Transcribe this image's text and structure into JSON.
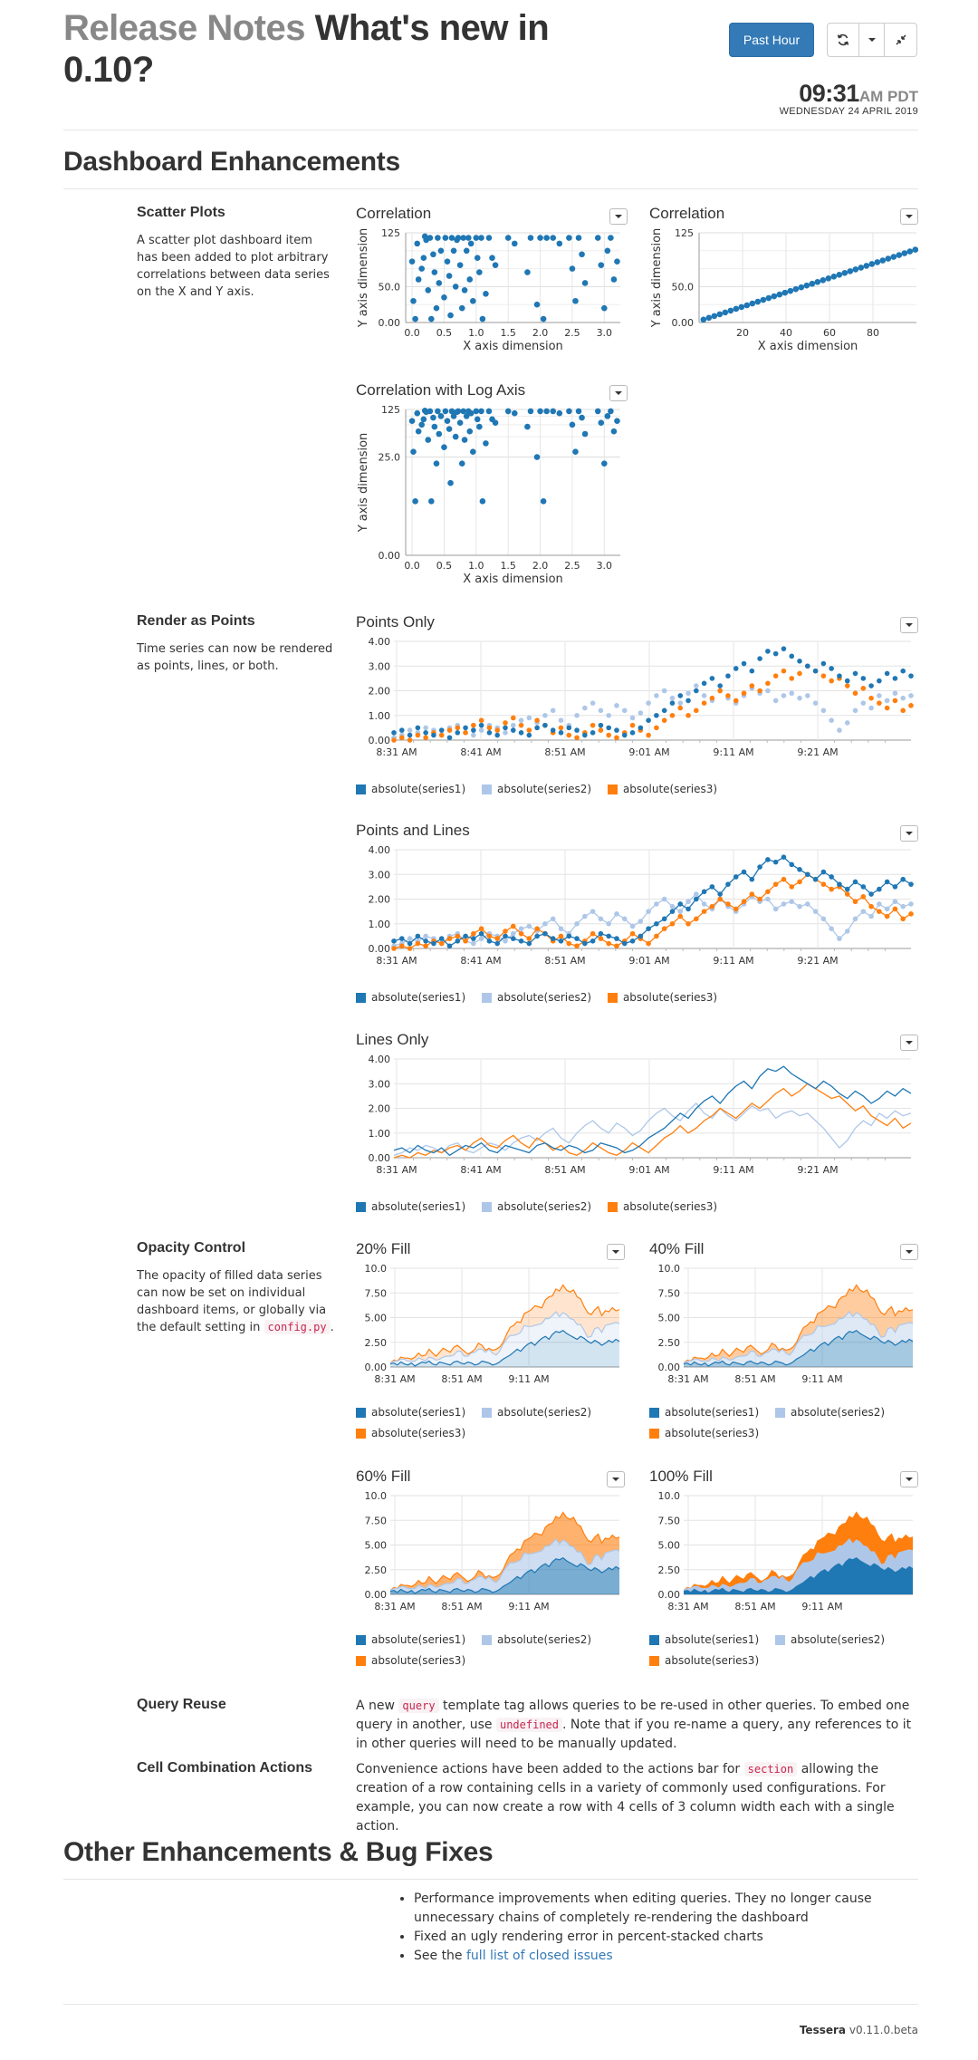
{
  "header": {
    "title_prefix": "Release Notes",
    "title_main": "What's new in 0.10?",
    "time_range_button": "Past Hour",
    "clock_time": "09:31",
    "clock_ampm": "AM PDT",
    "clock_date": "WEDNESDAY 24 APRIL 2019"
  },
  "sections": {
    "dashboard_enhancements": "Dashboard Enhancements",
    "other": "Other Enhancements & Bug Fixes"
  },
  "features": {
    "scatter": {
      "title": "Scatter Plots",
      "desc": "A scatter plot dashboard item has been added to plot arbitrary correlations between data series on the X and Y axis."
    },
    "points": {
      "title": "Render as Points",
      "desc": "Time series can now be rendered as points, lines, or both."
    },
    "opacity": {
      "title": "Opacity Control",
      "desc_1": "The opacity of filled data series can now be set on individual dashboard items, or globally via the default setting in",
      "desc_code": "config.py",
      "desc_2": "."
    },
    "query_reuse": {
      "title": "Query Reuse",
      "text_1": "A new",
      "code_1": "query",
      "text_2": "template tag allows queries to be re-used in other queries. To embed one query in another, use",
      "code_2": "undefined",
      "text_3": ". Note that if you re-name a query, any references to it in other queries will need to be manually updated."
    },
    "cell_combo": {
      "title": "Cell Combination Actions",
      "text_1": "Convenience actions have been added to the actions bar for",
      "code_1": "section",
      "text_2": "allowing the creation of a row containing cells in a variety of commonly used configurations. For example, you can now create a row with 4 cells of 3 column width each with a single action."
    }
  },
  "fixes": {
    "item_1": "Performance improvements when editing queries. They no longer cause unnecessary chains of completely re-rendering the dashboard",
    "item_2": "Fixed an ugly rendering error in percent-stacked charts",
    "item_3_prefix": "See the",
    "item_3_link": "full list of closed issues"
  },
  "footer": {
    "brand": "Tessera",
    "version": "v0.11.0.beta"
  },
  "colors": {
    "series1": "#1f77b4",
    "series2": "#aec7e8",
    "series3": "#ff7f0e",
    "primary": "#337ab7"
  },
  "legend": [
    "absolute(series1)",
    "absolute(series2)",
    "absolute(series3)"
  ],
  "chart_data": [
    {
      "id": "corr1",
      "type": "scatter",
      "title": "Correlation",
      "xlabel": "X axis dimension",
      "ylabel": "Y axis dimension",
      "xticks": [
        "0.0",
        "0.5",
        "1.0",
        "1.5",
        "2.0",
        "2.5",
        "3.0"
      ],
      "yticks": [
        "0.00",
        "50.0",
        "125"
      ],
      "xlim": [
        -0.1,
        3.25
      ],
      "ylim": [
        0,
        125
      ],
      "points": [
        [
          0.0,
          85
        ],
        [
          0.02,
          30
        ],
        [
          0.05,
          5
        ],
        [
          0.08,
          110
        ],
        [
          0.1,
          60
        ],
        [
          0.15,
          75
        ],
        [
          0.18,
          90
        ],
        [
          0.2,
          120
        ],
        [
          0.22,
          115
        ],
        [
          0.25,
          45
        ],
        [
          0.28,
          118
        ],
        [
          0.3,
          5
        ],
        [
          0.33,
          95
        ],
        [
          0.35,
          70
        ],
        [
          0.38,
          20
        ],
        [
          0.4,
          118
        ],
        [
          0.42,
          55
        ],
        [
          0.45,
          100
        ],
        [
          0.5,
          35
        ],
        [
          0.52,
          118
        ],
        [
          0.55,
          85
        ],
        [
          0.58,
          65
        ],
        [
          0.6,
          10
        ],
        [
          0.62,
          118
        ],
        [
          0.65,
          100
        ],
        [
          0.68,
          50
        ],
        [
          0.7,
          115
        ],
        [
          0.72,
          118
        ],
        [
          0.75,
          80
        ],
        [
          0.78,
          20
        ],
        [
          0.8,
          118
        ],
        [
          0.82,
          45
        ],
        [
          0.85,
          100
        ],
        [
          0.88,
          118
        ],
        [
          0.9,
          60
        ],
        [
          0.92,
          110
        ],
        [
          0.95,
          30
        ],
        [
          1.0,
          118
        ],
        [
          1.02,
          90
        ],
        [
          1.05,
          70
        ],
        [
          1.08,
          118
        ],
        [
          1.1,
          5
        ],
        [
          1.15,
          40
        ],
        [
          1.2,
          118
        ],
        [
          1.25,
          90
        ],
        [
          1.3,
          80
        ],
        [
          1.5,
          118
        ],
        [
          1.6,
          110
        ],
        [
          1.8,
          70
        ],
        [
          1.85,
          118
        ],
        [
          1.95,
          25
        ],
        [
          2.0,
          118
        ],
        [
          2.05,
          5
        ],
        [
          2.1,
          118
        ],
        [
          2.2,
          118
        ],
        [
          2.3,
          110
        ],
        [
          2.45,
          118
        ],
        [
          2.5,
          75
        ],
        [
          2.55,
          30
        ],
        [
          2.6,
          118
        ],
        [
          2.65,
          95
        ],
        [
          2.7,
          55
        ],
        [
          2.9,
          118
        ],
        [
          2.95,
          80
        ],
        [
          3.0,
          20
        ],
        [
          3.05,
          100
        ],
        [
          3.1,
          118
        ],
        [
          3.15,
          60
        ],
        [
          3.2,
          85
        ]
      ]
    },
    {
      "id": "corr2",
      "type": "scatter",
      "title": "Correlation",
      "xlabel": "X axis dimension",
      "ylabel": "Y axis dimension",
      "xticks": [
        "20",
        "40",
        "60",
        "80"
      ],
      "yticks": [
        "0.00",
        "50.0",
        "125"
      ],
      "xlim": [
        0,
        100
      ],
      "ylim": [
        0,
        125
      ],
      "points": "linear",
      "npoints": 40
    },
    {
      "id": "corrlog",
      "type": "scatter",
      "title": "Correlation with Log Axis",
      "xlabel": "X axis dimension",
      "ylabel": "Y axis dimension",
      "xticks": [
        "0.0",
        "0.5",
        "1.0",
        "1.5",
        "2.0",
        "2.5",
        "3.0"
      ],
      "yticks": [
        "0.00",
        "25.0",
        "125"
      ],
      "xlim": [
        -0.1,
        3.25
      ],
      "ylim": [
        0,
        125
      ],
      "yscale": "log",
      "points": "same_as_corr1"
    },
    {
      "id": "points_only",
      "type": "line",
      "title": "Points Only",
      "mode": "points",
      "xticks": [
        "8:31 AM",
        "8:41 AM",
        "8:51 AM",
        "9:01 AM",
        "9:11 AM",
        "9:21 AM"
      ],
      "yticks": [
        "0.00",
        "1.00",
        "2.00",
        "3.00",
        "4.00"
      ],
      "ylim": [
        0,
        4
      ],
      "series1": [
        0.3,
        0.4,
        0.2,
        0.5,
        0.3,
        0.2,
        0.4,
        0.1,
        0.3,
        0.5,
        0.4,
        0.6,
        0.3,
        0.2,
        0.5,
        0.4,
        0.3,
        0.2,
        0.5,
        0.6,
        0.4,
        0.3,
        0.5,
        0.4,
        0.2,
        0.3,
        0.6,
        0.5,
        0.4,
        0.2,
        0.3,
        0.5,
        0.8,
        1.0,
        1.2,
        1.5,
        1.8,
        1.6,
        2.0,
        2.3,
        2.5,
        2.2,
        2.6,
        2.9,
        3.1,
        2.8,
        3.3,
        3.6,
        3.5,
        3.7,
        3.4,
        3.2,
        3.0,
        2.8,
        3.1,
        2.9,
        2.6,
        2.4,
        2.7,
        2.5,
        2.2,
        2.4,
        2.7,
        2.5,
        2.8,
        2.6
      ],
      "series2": [
        0.1,
        0.2,
        0.4,
        0.3,
        0.5,
        0.4,
        0.2,
        0.5,
        0.6,
        0.3,
        0.2,
        0.4,
        0.6,
        0.5,
        0.3,
        0.6,
        0.8,
        0.9,
        0.7,
        1.0,
        1.2,
        0.8,
        0.6,
        1.0,
        1.3,
        1.5,
        1.2,
        1.0,
        1.4,
        1.2,
        0.9,
        1.1,
        1.5,
        1.8,
        2.0,
        1.7,
        1.5,
        1.9,
        2.2,
        1.8,
        1.6,
        2.0,
        1.7,
        1.5,
        1.8,
        2.1,
        1.9,
        2.0,
        1.6,
        1.8,
        1.9,
        1.7,
        1.8,
        1.5,
        1.2,
        0.8,
        0.4,
        0.7,
        1.2,
        1.5,
        1.3,
        1.8,
        1.6,
        1.9,
        1.7,
        1.8
      ],
      "series3": [
        0.0,
        0.1,
        0.0,
        0.2,
        0.1,
        0.3,
        0.2,
        0.4,
        0.5,
        0.3,
        0.6,
        0.8,
        0.5,
        0.4,
        0.7,
        0.9,
        0.6,
        0.4,
        0.8,
        0.6,
        0.3,
        0.5,
        0.2,
        0.1,
        0.3,
        0.6,
        0.4,
        0.2,
        0.1,
        0.3,
        0.6,
        0.4,
        0.2,
        0.5,
        0.8,
        1.0,
        1.3,
        1.0,
        1.2,
        1.5,
        1.7,
        2.0,
        1.8,
        1.6,
        1.9,
        2.2,
        2.0,
        2.3,
        2.6,
        2.8,
        2.5,
        2.7,
        3.0,
        2.8,
        2.6,
        2.4,
        2.5,
        2.2,
        1.9,
        2.1,
        1.7,
        1.5,
        1.3,
        1.6,
        1.2,
        1.4
      ]
    },
    {
      "id": "points_lines",
      "type": "line",
      "title": "Points and Lines",
      "mode": "both"
    },
    {
      "id": "lines_only",
      "type": "line",
      "title": "Lines Only",
      "mode": "lines"
    },
    {
      "id": "fill20",
      "type": "area",
      "title": "20% Fill",
      "opacity": 0.2,
      "xticks": [
        "8:31 AM",
        "8:51 AM",
        "9:11 AM"
      ],
      "yticks": [
        "0.00",
        "2.50",
        "5.00",
        "7.50",
        "10.0"
      ],
      "ylim": [
        0,
        10
      ]
    },
    {
      "id": "fill40",
      "type": "area",
      "title": "40% Fill",
      "opacity": 0.4
    },
    {
      "id": "fill60",
      "type": "area",
      "title": "60% Fill",
      "opacity": 0.6
    },
    {
      "id": "fill100",
      "type": "area",
      "title": "100% Fill",
      "opacity": 1.0
    }
  ]
}
